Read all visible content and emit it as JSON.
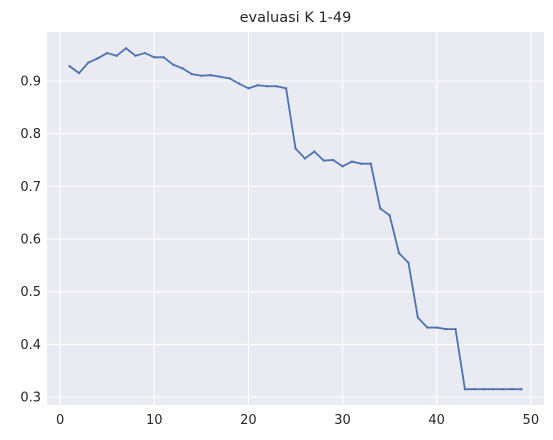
{
  "chart_data": {
    "type": "line",
    "title": "evaluasi K 1-49",
    "xlabel": "",
    "ylabel": "",
    "xlim": [
      -1.4,
      51.4
    ],
    "ylim": [
      0.285,
      0.993
    ],
    "xticks": [
      0,
      10,
      20,
      30,
      40,
      50
    ],
    "yticks": [
      0.3,
      0.4,
      0.5,
      0.6,
      0.7,
      0.8,
      0.9
    ],
    "xtick_labels": [
      "0",
      "10",
      "20",
      "30",
      "40",
      "50"
    ],
    "ytick_labels": [
      "0.3",
      "0.4",
      "0.5",
      "0.6",
      "0.7",
      "0.8",
      "0.9"
    ],
    "grid": true,
    "colors": {
      "background": "#eaeaf2",
      "grid": "#ffffff",
      "line": "#4c72b0"
    },
    "series": [
      {
        "x": [
          1,
          2,
          3,
          4,
          5,
          6,
          7,
          8,
          9,
          10,
          11,
          12,
          13,
          14,
          15,
          16,
          17,
          18,
          19,
          20,
          21,
          22,
          23,
          24,
          25,
          26,
          27,
          28,
          29,
          30,
          31,
          32,
          33,
          34,
          35,
          36,
          37,
          38,
          39,
          40,
          41,
          42,
          43,
          44,
          45,
          46,
          47,
          48,
          49
        ],
        "values": [
          0.928,
          0.915,
          0.935,
          0.943,
          0.953,
          0.948,
          0.962,
          0.948,
          0.953,
          0.945,
          0.945,
          0.931,
          0.924,
          0.913,
          0.91,
          0.911,
          0.908,
          0.905,
          0.895,
          0.886,
          0.892,
          0.89,
          0.89,
          0.886,
          0.772,
          0.753,
          0.766,
          0.749,
          0.75,
          0.738,
          0.747,
          0.743,
          0.743,
          0.658,
          0.645,
          0.573,
          0.555,
          0.451,
          0.432,
          0.432,
          0.429,
          0.429,
          0.315,
          0.315,
          0.315,
          0.315,
          0.315,
          0.315,
          0.315
        ]
      }
    ]
  }
}
